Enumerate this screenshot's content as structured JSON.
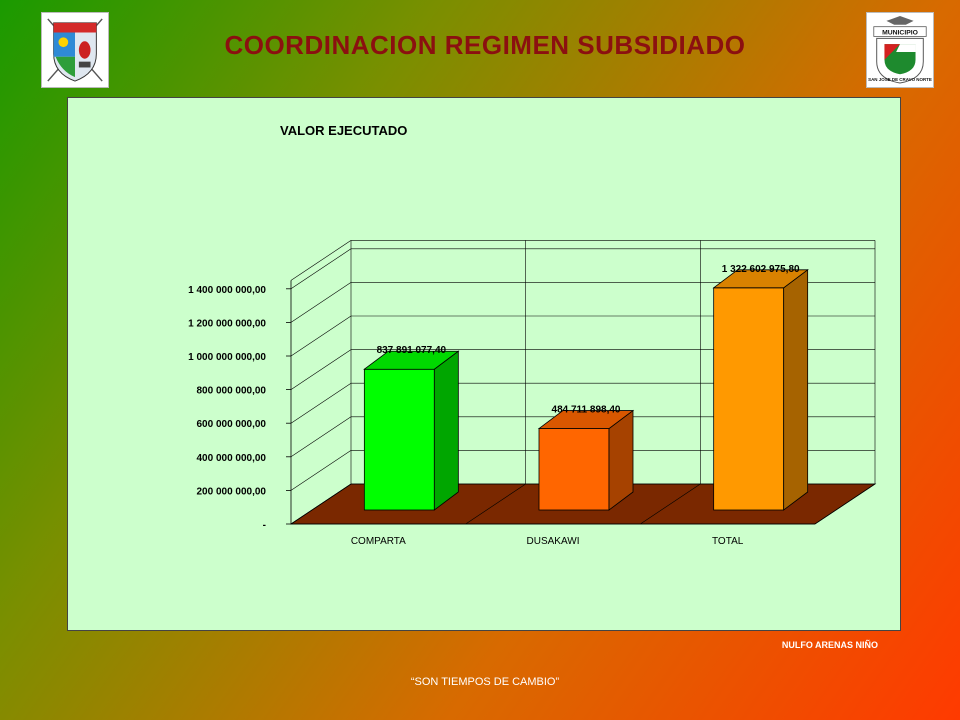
{
  "header": {
    "title": "COORDINACION REGIMEN SUBSIDIADO",
    "logo_left_icon": "department-coat-of-arms-icon",
    "logo_right_icon": "municipality-shield-icon",
    "logo_right_text": [
      "MUNICIPIO",
      "SAN JOSE DE CRAVO NORTE"
    ]
  },
  "chart_data": {
    "type": "bar",
    "title": "VALOR EJECUTADO",
    "xlabel": "",
    "ylabel": "",
    "categories": [
      "COMPARTA",
      "DUSAKAWI",
      "TOTAL"
    ],
    "values": [
      837891077.4,
      484711898.4,
      1322602975.8
    ],
    "value_labels": [
      "837 891 077,40",
      "484 711 898,40",
      "1 322 602 975,80"
    ],
    "bar_colors": [
      "#00ff00",
      "#ff6600",
      "#ff9900"
    ],
    "ylim": [
      0,
      1400000000
    ],
    "yticks": [
      0,
      200000000,
      400000000,
      600000000,
      800000000,
      1000000000,
      1200000000,
      1400000000
    ],
    "ytick_labels": [
      "-",
      "200 000 000,00",
      "400 000 000,00",
      "600 000 000,00",
      "800 000 000,00",
      "1 000 000 000,00",
      "1 200 000 000,00",
      "1 400 000 000,00"
    ],
    "grid": true,
    "legend": "none",
    "floor_color": "#7a2800"
  },
  "footer": {
    "author": "NULFO ARENAS NIÑO",
    "slogan": "“SON TIEMPOS DE CAMBIO”"
  }
}
